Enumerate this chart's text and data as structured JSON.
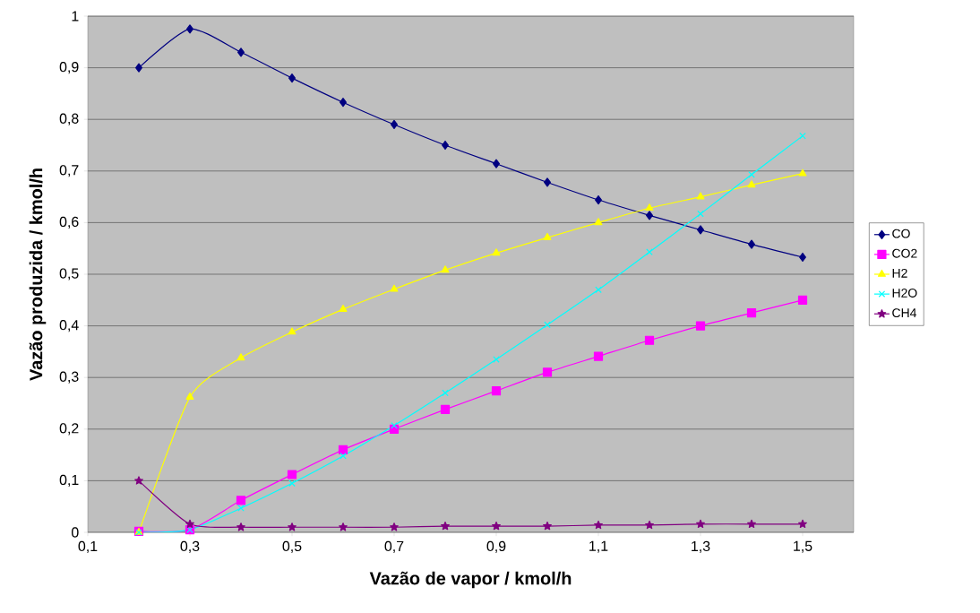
{
  "chart_data": {
    "type": "line",
    "xlabel": "Vazão de vapor / kmol/h",
    "ylabel": "Vazão produzida / kmol/h",
    "x": [
      0.2,
      0.3,
      0.4,
      0.5,
      0.6,
      0.7,
      0.8,
      0.9,
      1.0,
      1.1,
      1.2,
      1.3,
      1.4,
      1.5
    ],
    "series": [
      {
        "name": "CO",
        "color": "#000080",
        "marker": "diamond",
        "values": [
          0.9,
          0.975,
          0.93,
          0.88,
          0.833,
          0.79,
          0.75,
          0.714,
          0.678,
          0.644,
          0.614,
          0.586,
          0.558,
          0.533
        ]
      },
      {
        "name": "CO2",
        "color": "#ff00ff",
        "marker": "square",
        "values": [
          0.002,
          0.005,
          0.062,
          0.112,
          0.16,
          0.2,
          0.238,
          0.274,
          0.31,
          0.341,
          0.372,
          0.4,
          0.425,
          0.45
        ]
      },
      {
        "name": "H2",
        "color": "#ffff00",
        "marker": "triangle",
        "values": [
          0.0,
          0.262,
          0.338,
          0.388,
          0.432,
          0.471,
          0.508,
          0.541,
          0.571,
          0.6,
          0.628,
          0.65,
          0.673,
          0.695
        ]
      },
      {
        "name": "H2O",
        "color": "#00ffff",
        "marker": "cross",
        "values": [
          0.0,
          0.005,
          0.047,
          0.095,
          0.148,
          0.207,
          0.27,
          0.335,
          0.402,
          0.47,
          0.543,
          0.617,
          0.693,
          0.768
        ]
      },
      {
        "name": "CH4",
        "color": "#800080",
        "marker": "star",
        "values": [
          0.1,
          0.016,
          0.01,
          0.01,
          0.01,
          0.01,
          0.012,
          0.012,
          0.012,
          0.014,
          0.014,
          0.016,
          0.016,
          0.016
        ]
      }
    ],
    "xlim": [
      0.1,
      1.6
    ],
    "xticks": [
      {
        "value": 0.1,
        "label": "0,1"
      },
      {
        "value": 0.3,
        "label": "0,3"
      },
      {
        "value": 0.5,
        "label": "0,5"
      },
      {
        "value": 0.7,
        "label": "0,7"
      },
      {
        "value": 0.9,
        "label": "0,9"
      },
      {
        "value": 1.1,
        "label": "1,1"
      },
      {
        "value": 1.3,
        "label": "1,3"
      },
      {
        "value": 1.5,
        "label": "1,5"
      }
    ],
    "ylim": [
      0,
      1
    ],
    "yticks": [
      0,
      {
        "value": 0.1,
        "label": "0,1"
      },
      {
        "value": 0.2,
        "label": "0,2"
      },
      {
        "value": 0.3,
        "label": "0,3"
      },
      {
        "value": 0.4,
        "label": "0,4"
      },
      {
        "value": 0.5,
        "label": "0,5"
      },
      {
        "value": 0.6,
        "label": "0,6"
      },
      {
        "value": 0.7,
        "label": "0,7"
      },
      {
        "value": 0.8,
        "label": "0,8"
      },
      {
        "value": 0.9,
        "label": "0,9"
      },
      1
    ],
    "grid": "y",
    "legend": "right",
    "line_style": "solid"
  }
}
